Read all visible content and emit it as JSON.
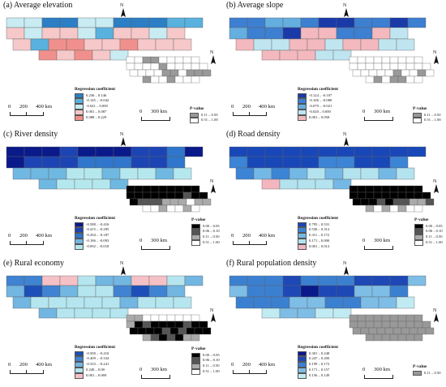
{
  "colors": {
    "tile_stroke": "#5f5f5f",
    "pv_map_bg": "#ffffff"
  },
  "panels": [
    {
      "title": "(a) Average elevation",
      "reg_legend": {
        "title": "Regression coefficient",
        "items": [
          {
            "label": "0.236 – 0.146",
            "color": "#2c7fc4"
          },
          {
            "label": "-0.145 – -0.042",
            "color": "#59b1de"
          },
          {
            "label": "-0.041 – 0.000",
            "color": "#c9ecf3"
          },
          {
            "label": "0.001 – 0.087",
            "color": "#f6c8c9"
          },
          {
            "label": "0.088 – 0.229",
            "color": "#f0908c"
          }
        ]
      },
      "reg_map": [
        2,
        2,
        0,
        0,
        2,
        2,
        0,
        0,
        0,
        1,
        1,
        3,
        2,
        3,
        3,
        2,
        1,
        3,
        3,
        2,
        3,
        3,
        1,
        4,
        4,
        3,
        3,
        4,
        3,
        3,
        3,
        4,
        3,
        4,
        3,
        2
      ],
      "pv_legend": {
        "title": "P-value",
        "items": [
          {
            "label": "0.11 – 0.50",
            "color": "#999999"
          },
          {
            "label": "0.51 – 1.00",
            "color": "#ffffff"
          }
        ]
      },
      "pv_map": [
        1,
        1,
        0,
        0,
        1,
        1,
        1,
        1,
        1,
        1,
        1,
        1,
        1,
        0,
        1,
        1,
        1,
        1,
        1,
        1,
        1,
        1,
        1,
        0,
        0,
        1,
        0,
        0,
        0,
        0,
        1,
        1,
        0,
        1,
        1,
        1
      ],
      "scale": {
        "n0": "0",
        "n1": "200",
        "n2": "400 km"
      },
      "pv_scale": {
        "n0": "0",
        "n1": "300 km"
      },
      "north": "N"
    },
    {
      "title": "(b) Average slope",
      "reg_legend": {
        "title": "Regression coefficient",
        "items": [
          {
            "label": "-0.124 – -0.107",
            "color": "#1a3aa8"
          },
          {
            "label": "-0.106 – -0.080",
            "color": "#3d7fd1"
          },
          {
            "label": "-0.079 – -0.021",
            "color": "#64aee0"
          },
          {
            "label": "-0.020 – 0.000",
            "color": "#bfe5f1"
          },
          {
            "label": "0.001 – 0.058",
            "color": "#f3b9be"
          }
        ]
      },
      "reg_map": [
        1,
        1,
        2,
        2,
        1,
        0,
        0,
        1,
        1,
        0,
        1,
        2,
        1,
        1,
        0,
        4,
        4,
        1,
        1,
        4,
        3,
        4,
        3,
        3,
        4,
        4,
        3,
        4,
        4,
        3,
        3,
        4,
        4,
        4,
        3,
        3
      ],
      "pv_legend": {
        "title": "P-value",
        "items": [
          {
            "label": "0.11 – 0.50",
            "color": "#999999"
          },
          {
            "label": "0.51 – 1.00",
            "color": "#ffffff"
          }
        ]
      },
      "pv_map": [
        1,
        1,
        1,
        1,
        1,
        1,
        1,
        1,
        1,
        1,
        1,
        1,
        1,
        1,
        1,
        1,
        1,
        1,
        1,
        1,
        1,
        1,
        1,
        1,
        0,
        1,
        1,
        0,
        1,
        1,
        0,
        1,
        0,
        0,
        1,
        1
      ],
      "scale": {
        "n0": "0",
        "n1": "200",
        "n2": "400 km"
      },
      "pv_scale": {
        "n0": "0",
        "n1": "300 km"
      },
      "north": "N"
    },
    {
      "title": "(c) River density",
      "reg_legend": {
        "title": "Regression coefficient",
        "items": [
          {
            "label": "-0.588 – -0.416",
            "color": "#0a1a8a"
          },
          {
            "label": "-0.415 – -0.295",
            "color": "#1c44b4"
          },
          {
            "label": "-0.294 – -0.187",
            "color": "#2f76cc"
          },
          {
            "label": "-0.186 – -0.093",
            "color": "#6fb8e2"
          },
          {
            "label": "-0.092 – -0.018",
            "color": "#b5e8ee"
          }
        ]
      },
      "reg_map": [
        0,
        0,
        0,
        1,
        0,
        0,
        0,
        1,
        1,
        2,
        0,
        0,
        1,
        1,
        1,
        2,
        2,
        2,
        1,
        1,
        2,
        3,
        3,
        3,
        4,
        4,
        3,
        4,
        4,
        3,
        4,
        3,
        4,
        4,
        4,
        3
      ],
      "pv_legend": {
        "title": "P-value",
        "items": [
          {
            "label": "0.00 – 0.05",
            "color": "#000000"
          },
          {
            "label": "0.06 – 0.10",
            "color": "#555555"
          },
          {
            "label": "0.11 – 0.50",
            "color": "#aaaaaa"
          },
          {
            "label": "0.51 – 1.00",
            "color": "#ffffff"
          }
        ]
      },
      "pv_map": [
        0,
        0,
        0,
        0,
        0,
        0,
        0,
        0,
        0,
        0,
        0,
        0,
        0,
        0,
        0,
        0,
        1,
        0,
        0,
        0,
        1,
        1,
        1,
        2,
        2,
        2,
        3,
        2,
        2,
        3,
        3,
        2,
        3,
        3,
        2,
        3
      ],
      "scale": {
        "n0": "0",
        "n1": "200",
        "n2": "400 km"
      },
      "pv_scale": {
        "n0": "0",
        "n1": "300 km"
      },
      "north": "N"
    },
    {
      "title": "(d) Road density",
      "reg_legend": {
        "title": "Regression coefficient",
        "items": [
          {
            "label": "0.795 – 0.531",
            "color": "#1847b8"
          },
          {
            "label": "0.530 – 0.312",
            "color": "#3c84d6"
          },
          {
            "label": "0.311 – 0.172",
            "color": "#74b8e6"
          },
          {
            "label": "0.171 – 0.000",
            "color": "#b3e3ef"
          },
          {
            "label": "0.001 – 0.012",
            "color": "#f3b6bf"
          }
        ]
      },
      "reg_map": [
        0,
        0,
        0,
        0,
        0,
        0,
        0,
        0,
        0,
        0,
        0,
        1,
        0,
        0,
        0,
        0,
        1,
        1,
        0,
        0,
        1,
        1,
        2,
        1,
        2,
        3,
        2,
        3,
        3,
        2,
        3,
        4,
        3,
        3,
        3,
        2
      ],
      "pv_legend": {
        "title": "P-value",
        "items": [
          {
            "label": "0.00 – 0.05",
            "color": "#000000"
          },
          {
            "label": "0.06 – 0.10",
            "color": "#555555"
          },
          {
            "label": "0.11 – 0.50",
            "color": "#aaaaaa"
          },
          {
            "label": "0.51 – 1.00",
            "color": "#ffffff"
          }
        ]
      },
      "pv_map": [
        0,
        0,
        0,
        0,
        0,
        0,
        0,
        0,
        0,
        0,
        0,
        0,
        0,
        0,
        0,
        0,
        0,
        0,
        0,
        0,
        0,
        0,
        1,
        0,
        1,
        1,
        2,
        2,
        1,
        2,
        3,
        2,
        3,
        2,
        3,
        3
      ],
      "scale": {
        "n0": "0",
        "n1": "200",
        "n2": "400 km"
      },
      "pv_scale": {
        "n0": "0",
        "n1": "300 km"
      },
      "north": "N"
    },
    {
      "title": "(e) Rural economy",
      "reg_legend": {
        "title": "Regression coefficient",
        "items": [
          {
            "label": "-0.500 – -0.410",
            "color": "#1c4fb8"
          },
          {
            "label": "-0.409 – -0.334",
            "color": "#3f83d2"
          },
          {
            "label": "-0.333 – -0.241",
            "color": "#72b6e2"
          },
          {
            "label": "0.240 – 0.00",
            "color": "#b5e6ef"
          },
          {
            "label": "0.001 – 0.069",
            "color": "#f5c1c6"
          }
        ]
      },
      "reg_map": [
        1,
        1,
        4,
        4,
        3,
        2,
        2,
        4,
        4,
        3,
        2,
        2,
        0,
        1,
        2,
        3,
        3,
        1,
        0,
        1,
        2,
        2,
        3,
        3,
        3,
        3,
        3,
        2,
        3,
        3,
        3,
        2,
        3,
        3,
        3,
        3
      ],
      "pv_legend": {
        "title": "P-value",
        "items": [
          {
            "label": "0.00 – 0.05",
            "color": "#000000"
          },
          {
            "label": "0.06 – 0.10",
            "color": "#555555"
          },
          {
            "label": "0.11 – 0.50",
            "color": "#aaaaaa"
          },
          {
            "label": "0.51 – 1.00",
            "color": "#ffffff"
          }
        ]
      },
      "pv_map": [
        2,
        2,
        3,
        3,
        3,
        3,
        3,
        3,
        3,
        2,
        0,
        1,
        0,
        0,
        0,
        0,
        1,
        0,
        0,
        0,
        0,
        0,
        0,
        1,
        0,
        1,
        0,
        0,
        0,
        2,
        1,
        0,
        1,
        0,
        2,
        2
      ],
      "scale": {
        "n0": "0",
        "n1": "200",
        "n2": "400 km"
      },
      "pv_scale": {
        "n0": "0",
        "n1": "300 km"
      },
      "north": "N"
    },
    {
      "title": "(f) Rural population density",
      "reg_legend": {
        "title": "Regression coefficient",
        "items": [
          {
            "label": "0.301 – 0.248",
            "color": "#0a1a8a"
          },
          {
            "label": "0.247 – 0.200",
            "color": "#1d48b6"
          },
          {
            "label": "0.199 – 0.172",
            "color": "#3b80d0"
          },
          {
            "label": "0.171 – 0.157",
            "color": "#7ebde6"
          },
          {
            "label": "0.156 – 0.149",
            "color": "#c1ebf2"
          }
        ]
      },
      "reg_map": [
        2,
        2,
        2,
        1,
        2,
        2,
        2,
        1,
        1,
        1,
        3,
        3,
        2,
        2,
        1,
        0,
        1,
        1,
        3,
        3,
        2,
        2,
        2,
        2,
        3,
        3,
        2,
        2,
        3,
        3,
        4,
        4,
        3,
        3,
        4,
        4
      ],
      "pv_legend": {
        "title": "P-value",
        "items": [
          {
            "label": "0.11 – 0.50",
            "color": "#999999"
          }
        ]
      },
      "pv_map": [
        0,
        0,
        0,
        0,
        0,
        0,
        0,
        0,
        0,
        0,
        0,
        0,
        0,
        0,
        0,
        0,
        0,
        0,
        0,
        0,
        0,
        0,
        0,
        0,
        0,
        0,
        0,
        0,
        0,
        0,
        0,
        0,
        0,
        0,
        0,
        0
      ],
      "scale": {
        "n0": "0",
        "n1": "200",
        "n2": "400 km"
      },
      "pv_scale": {
        "n0": "0",
        "n1": "300 km"
      },
      "north": "N"
    }
  ]
}
